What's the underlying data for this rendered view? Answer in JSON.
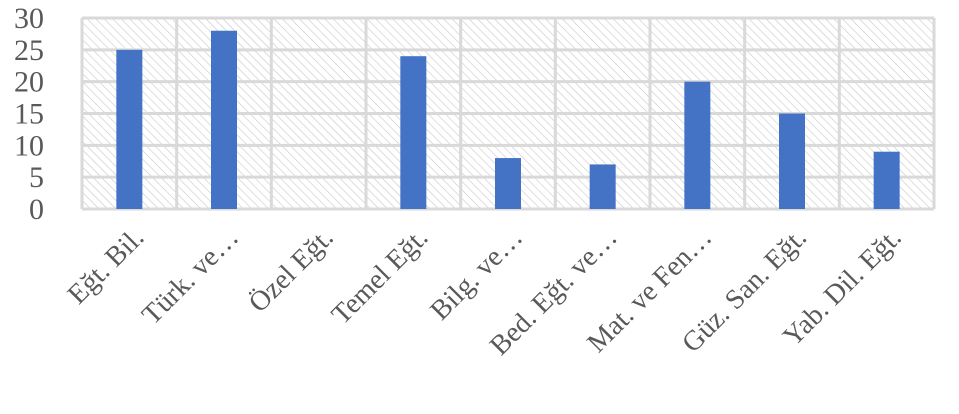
{
  "chart_data": {
    "type": "bar",
    "title": "",
    "xlabel": "",
    "ylabel": "",
    "ylim": [
      0,
      30
    ],
    "yticks": [
      0,
      5,
      10,
      15,
      20,
      25,
      30
    ],
    "grid": true,
    "legend": "none",
    "bar_color": "#4472C4",
    "grid_color": "#D9D9D9",
    "plot_fill": "hatched-light-gray",
    "categories": [
      "Eğt. Bil.",
      "Türk. ve…",
      "Özel Eğt.",
      "Temel Eğt.",
      "Bilg. ve…",
      "Bed. Eğt. ve…",
      "Mat. ve Fen…",
      "Güz. San. Eğt.",
      "Yab. Dil. Eğt."
    ],
    "values": [
      25,
      28,
      0,
      24,
      8,
      7,
      20,
      15,
      9
    ]
  }
}
